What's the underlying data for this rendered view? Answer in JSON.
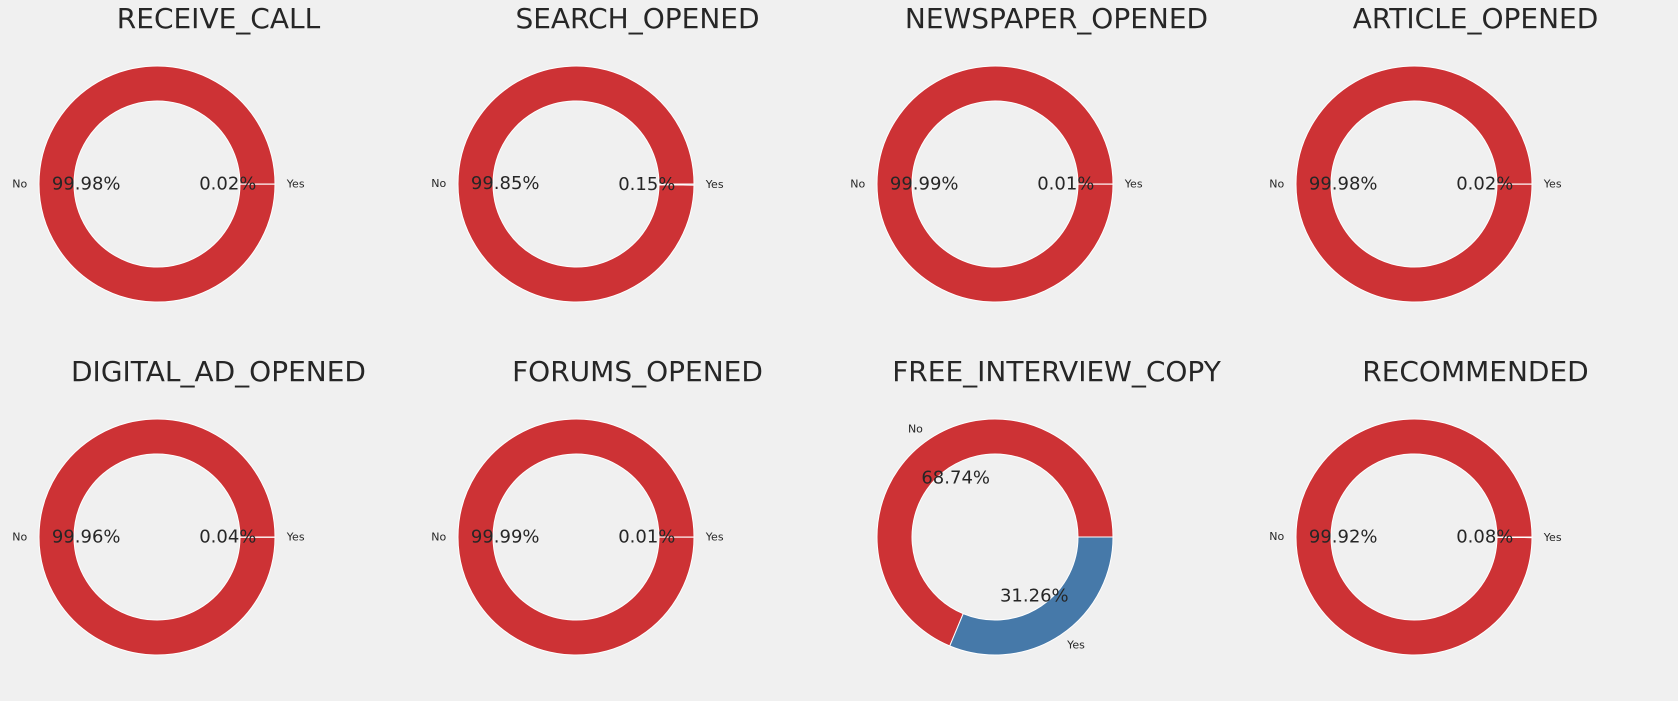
{
  "chart_data": [
    {
      "type": "pie",
      "title": "RECEIVE_CALL",
      "labels": [
        "No",
        "Yes"
      ],
      "values": [
        99.98,
        0.02
      ],
      "value_labels": [
        "99.98%",
        "0.02%"
      ],
      "colors": [
        "#cd3235",
        "#4679a9"
      ],
      "donut": true
    },
    {
      "type": "pie",
      "title": "SEARCH_OPENED",
      "labels": [
        "No",
        "Yes"
      ],
      "values": [
        99.85,
        0.15
      ],
      "value_labels": [
        "99.85%",
        "0.15%"
      ],
      "colors": [
        "#cd3235",
        "#4679a9"
      ],
      "donut": true
    },
    {
      "type": "pie",
      "title": "NEWSPAPER_OPENED",
      "labels": [
        "No",
        "Yes"
      ],
      "values": [
        99.99,
        0.01
      ],
      "value_labels": [
        "99.99%",
        "0.01%"
      ],
      "colors": [
        "#cd3235",
        "#4679a9"
      ],
      "donut": true
    },
    {
      "type": "pie",
      "title": "ARTICLE_OPENED",
      "labels": [
        "No",
        "Yes"
      ],
      "values": [
        99.98,
        0.02
      ],
      "value_labels": [
        "99.98%",
        "0.02%"
      ],
      "colors": [
        "#cd3235",
        "#4679a9"
      ],
      "donut": true
    },
    {
      "type": "pie",
      "title": "DIGITAL_AD_OPENED",
      "labels": [
        "No",
        "Yes"
      ],
      "values": [
        99.96,
        0.04
      ],
      "value_labels": [
        "99.96%",
        "0.04%"
      ],
      "colors": [
        "#cd3235",
        "#4679a9"
      ],
      "donut": true
    },
    {
      "type": "pie",
      "title": "FORUMS_OPENED",
      "labels": [
        "No",
        "Yes"
      ],
      "values": [
        99.99,
        0.01
      ],
      "value_labels": [
        "99.99%",
        "0.01%"
      ],
      "colors": [
        "#cd3235",
        "#4679a9"
      ],
      "donut": true
    },
    {
      "type": "pie",
      "title": "FREE_INTERVIEW_COPY",
      "labels": [
        "No",
        "Yes"
      ],
      "values": [
        68.74,
        31.26
      ],
      "value_labels": [
        "68.74%",
        "31.26%"
      ],
      "colors": [
        "#cd3235",
        "#4679a9"
      ],
      "donut": true
    },
    {
      "type": "pie",
      "title": "RECOMMENDED",
      "labels": [
        "No",
        "Yes"
      ],
      "values": [
        99.92,
        0.08
      ],
      "value_labels": [
        "99.92%",
        "0.08%"
      ],
      "colors": [
        "#cd3235",
        "#4679a9"
      ],
      "donut": true
    }
  ]
}
